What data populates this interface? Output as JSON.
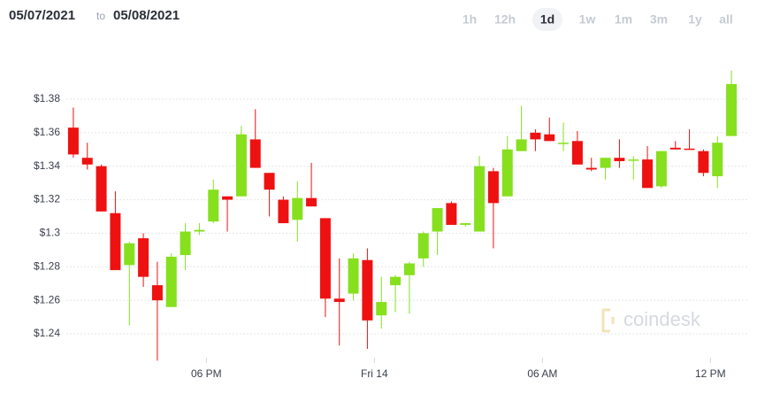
{
  "header": {
    "from": "05/07/2021",
    "to_word": "to",
    "to": "05/08/2021",
    "ranges": [
      "1h",
      "12h",
      "1d",
      "1w",
      "1m",
      "3m",
      "1y",
      "all"
    ],
    "selected": 2
  },
  "watermark": "coindesk",
  "chart_data": {
    "type": "candlestick",
    "x": [
      0,
      1,
      2,
      3,
      4,
      5,
      6,
      7,
      8,
      9,
      10,
      11,
      12,
      13,
      14,
      15,
      16,
      17,
      18,
      19,
      20,
      21,
      22,
      23,
      24,
      25,
      26,
      27,
      28,
      29,
      30,
      31,
      32,
      33,
      34,
      35,
      36,
      37,
      38,
      39,
      40,
      41,
      42,
      43,
      44,
      45,
      46,
      47
    ],
    "open": [
      1.363,
      1.345,
      1.34,
      1.312,
      1.281,
      1.297,
      1.269,
      1.256,
      1.287,
      1.301,
      1.307,
      1.322,
      1.322,
      1.356,
      1.336,
      1.32,
      1.308,
      1.321,
      1.309,
      1.261,
      1.264,
      1.284,
      1.251,
      1.269,
      1.275,
      1.285,
      1.301,
      1.318,
      1.305,
      1.301,
      1.337,
      1.322,
      1.349,
      1.36,
      1.359,
      1.3535,
      1.355,
      1.339,
      1.339,
      1.345,
      1.3435,
      1.344,
      1.328,
      1.351,
      1.3505,
      1.349,
      1.334,
      1.358
    ],
    "high": [
      1.375,
      1.354,
      1.341,
      1.325,
      1.295,
      1.3,
      1.283,
      1.288,
      1.306,
      1.306,
      1.332,
      1.322,
      1.364,
      1.374,
      1.336,
      1.322,
      1.331,
      1.342,
      1.309,
      1.285,
      1.288,
      1.291,
      1.274,
      1.275,
      1.283,
      1.301,
      1.315,
      1.319,
      1.306,
      1.346,
      1.339,
      1.358,
      1.376,
      1.362,
      1.369,
      1.366,
      1.361,
      1.345,
      1.345,
      1.356,
      1.346,
      1.352,
      1.349,
      1.355,
      1.362,
      1.35,
      1.358,
      1.397
    ],
    "low": [
      1.345,
      1.338,
      1.313,
      1.278,
      1.245,
      1.268,
      1.224,
      1.256,
      1.278,
      1.299,
      1.306,
      1.301,
      1.322,
      1.339,
      1.31,
      1.306,
      1.295,
      1.316,
      1.25,
      1.233,
      1.26,
      1.231,
      1.243,
      1.253,
      1.252,
      1.28,
      1.287,
      1.305,
      1.304,
      1.301,
      1.291,
      1.322,
      1.349,
      1.349,
      1.355,
      1.349,
      1.341,
      1.337,
      1.332,
      1.339,
      1.332,
      1.327,
      1.327,
      1.35,
      1.35,
      1.334,
      1.327,
      1.358
    ],
    "close": [
      1.347,
      1.341,
      1.313,
      1.278,
      1.294,
      1.274,
      1.26,
      1.286,
      1.301,
      1.302,
      1.326,
      1.32,
      1.359,
      1.339,
      1.326,
      1.306,
      1.321,
      1.316,
      1.261,
      1.259,
      1.285,
      1.248,
      1.259,
      1.274,
      1.282,
      1.3,
      1.315,
      1.305,
      1.306,
      1.34,
      1.318,
      1.35,
      1.356,
      1.356,
      1.355,
      1.354,
      1.341,
      1.338,
      1.345,
      1.343,
      1.344,
      1.327,
      1.349,
      1.35,
      1.35,
      1.336,
      1.354,
      1.389
    ],
    "up_color": "#86e01e",
    "down_color": "#ee1111",
    "xlim": [
      -0.5,
      47.5
    ],
    "xticks": [
      {
        "value": 9.5,
        "label": "06 PM"
      },
      {
        "value": 21.5,
        "label": "Fri 14"
      },
      {
        "value": 33.5,
        "label": "06 AM"
      },
      {
        "value": 45.5,
        "label": "12 PM"
      }
    ],
    "ylim": [
      1.22,
      1.4
    ],
    "yticks": [
      {
        "value": 1.24,
        "label": "$1.24"
      },
      {
        "value": 1.26,
        "label": "$1.26"
      },
      {
        "value": 1.28,
        "label": "$1.28"
      },
      {
        "value": 1.3,
        "label": "$1.3"
      },
      {
        "value": 1.32,
        "label": "$1.32"
      },
      {
        "value": 1.34,
        "label": "$1.34"
      },
      {
        "value": 1.36,
        "label": "$1.36"
      },
      {
        "value": 1.38,
        "label": "$1.38"
      }
    ],
    "grid": true
  }
}
